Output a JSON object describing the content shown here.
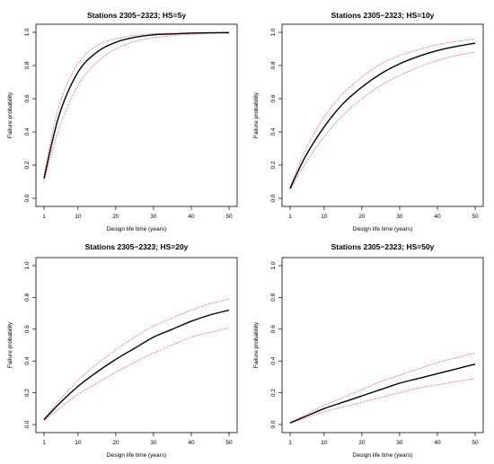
{
  "chart_data": [
    {
      "type": "line",
      "title": "Stations 2305−2323; HS=5y",
      "xlabel": "Design life time (years)",
      "ylabel": "Failure probability",
      "xlim": [
        1,
        50
      ],
      "ylim": [
        0,
        1
      ],
      "xticks": [
        1,
        10,
        20,
        30,
        40,
        50
      ],
      "yticks": [
        0.0,
        0.2,
        0.4,
        0.6,
        0.8,
        1.0
      ],
      "ytick_labels": [
        "0.0",
        "0.2",
        "0.4",
        "0.6",
        "0.8",
        "1.0"
      ],
      "grid": false,
      "x": [
        1,
        5,
        10,
        15,
        20,
        25,
        30,
        35,
        40,
        45,
        50
      ],
      "series": [
        {
          "role": "estimate",
          "color": "#000000",
          "style": "solid",
          "values": [
            0.12,
            0.5,
            0.76,
            0.88,
            0.94,
            0.97,
            0.985,
            0.99,
            0.995,
            0.997,
            0.998
          ]
        },
        {
          "role": "upper bound",
          "color": "#e0475a",
          "style": "dotted",
          "values": [
            0.14,
            0.56,
            0.81,
            0.92,
            0.96,
            0.982,
            0.991,
            0.995,
            0.997,
            0.998,
            0.999
          ]
        },
        {
          "role": "lower bound",
          "color": "#e0475a",
          "style": "dotted",
          "values": [
            0.1,
            0.42,
            0.68,
            0.82,
            0.9,
            0.945,
            0.967,
            0.98,
            0.988,
            0.993,
            0.995
          ]
        }
      ]
    },
    {
      "type": "line",
      "title": "Stations 2305−2323; HS=10y",
      "xlabel": "Design life time (years)",
      "ylabel": "Failure probability",
      "xlim": [
        1,
        50
      ],
      "ylim": [
        0,
        1
      ],
      "xticks": [
        1,
        10,
        20,
        30,
        40,
        50
      ],
      "yticks": [
        0.0,
        0.2,
        0.4,
        0.6,
        0.8,
        1.0
      ],
      "ytick_labels": [
        "0.0",
        "0.2",
        "0.4",
        "0.6",
        "0.8",
        "1.0"
      ],
      "grid": false,
      "x": [
        1,
        5,
        10,
        15,
        20,
        25,
        30,
        35,
        40,
        45,
        50
      ],
      "series": [
        {
          "role": "estimate",
          "color": "#000000",
          "style": "solid",
          "values": [
            0.06,
            0.25,
            0.43,
            0.57,
            0.67,
            0.75,
            0.81,
            0.855,
            0.89,
            0.915,
            0.935
          ]
        },
        {
          "role": "upper bound",
          "color": "#e0475a",
          "style": "dotted",
          "values": [
            0.07,
            0.29,
            0.49,
            0.63,
            0.73,
            0.81,
            0.86,
            0.895,
            0.925,
            0.945,
            0.96
          ]
        },
        {
          "role": "lower bound",
          "color": "#e0475a",
          "style": "dotted",
          "values": [
            0.05,
            0.21,
            0.37,
            0.5,
            0.6,
            0.68,
            0.74,
            0.79,
            0.83,
            0.86,
            0.88
          ]
        }
      ]
    },
    {
      "type": "line",
      "title": "Stations 2305−2323; HS=20y",
      "xlabel": "Design life time (years)",
      "ylabel": "Failure probability",
      "xlim": [
        1,
        50
      ],
      "ylim": [
        0,
        1
      ],
      "xticks": [
        1,
        10,
        20,
        30,
        40,
        50
      ],
      "yticks": [
        0.0,
        0.2,
        0.4,
        0.6,
        0.8,
        1.0
      ],
      "ytick_labels": [
        "0.0",
        "0.2",
        "0.4",
        "0.6",
        "0.8",
        "1.0"
      ],
      "grid": false,
      "x": [
        1,
        5,
        10,
        15,
        20,
        25,
        30,
        35,
        40,
        45,
        50
      ],
      "series": [
        {
          "role": "estimate",
          "color": "#000000",
          "style": "solid",
          "values": [
            0.03,
            0.13,
            0.24,
            0.33,
            0.41,
            0.48,
            0.55,
            0.6,
            0.65,
            0.69,
            0.72
          ]
        },
        {
          "role": "upper bound",
          "color": "#e0475a",
          "style": "dotted",
          "values": [
            0.035,
            0.15,
            0.28,
            0.38,
            0.47,
            0.55,
            0.62,
            0.67,
            0.72,
            0.76,
            0.79
          ]
        },
        {
          "role": "lower bound",
          "color": "#e0475a",
          "style": "dotted",
          "values": [
            0.025,
            0.1,
            0.19,
            0.26,
            0.33,
            0.39,
            0.45,
            0.5,
            0.55,
            0.58,
            0.61
          ]
        }
      ]
    },
    {
      "type": "line",
      "title": "Stations 2305−2323; HS=50y",
      "xlabel": "Design life time (years)",
      "ylabel": "Failure probability",
      "xlim": [
        1,
        50
      ],
      "ylim": [
        0,
        1
      ],
      "xticks": [
        1,
        10,
        20,
        30,
        40,
        50
      ],
      "yticks": [
        0.0,
        0.2,
        0.4,
        0.6,
        0.8,
        1.0
      ],
      "ytick_labels": [
        "0.0",
        "0.2",
        "0.4",
        "0.6",
        "0.8",
        "1.0"
      ],
      "grid": false,
      "x": [
        1,
        5,
        10,
        15,
        20,
        25,
        30,
        35,
        40,
        45,
        50
      ],
      "series": [
        {
          "role": "estimate",
          "color": "#000000",
          "style": "solid",
          "values": [
            0.01,
            0.05,
            0.1,
            0.14,
            0.18,
            0.22,
            0.26,
            0.29,
            0.32,
            0.35,
            0.38
          ]
        },
        {
          "role": "upper bound",
          "color": "#e0475a",
          "style": "dotted",
          "values": [
            0.012,
            0.06,
            0.12,
            0.17,
            0.22,
            0.27,
            0.31,
            0.35,
            0.39,
            0.42,
            0.45
          ]
        },
        {
          "role": "lower bound",
          "color": "#e0475a",
          "style": "dotted",
          "values": [
            0.008,
            0.04,
            0.08,
            0.11,
            0.14,
            0.17,
            0.2,
            0.23,
            0.25,
            0.27,
            0.29
          ]
        }
      ]
    }
  ]
}
